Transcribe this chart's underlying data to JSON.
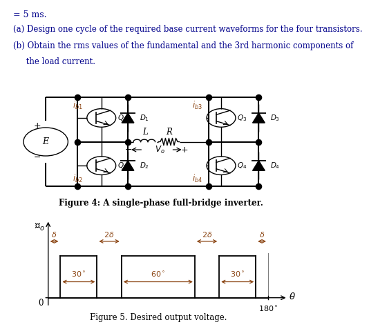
{
  "title_text": "= 5 ms.",
  "part_a": "(a) Design one cycle of the required base current waveforms for the four transistors.",
  "part_b_line1": "(b) Obtain the rms values of the fundamental and the 3rd harmonic components of",
  "part_b_line2": "     the load current.",
  "fig4_caption_bold": "Figure 4:",
  "fig4_caption_rest": " A single-phase full-bridge inverter.",
  "fig5_caption": "Figure 5. Desired output voltage.",
  "bg_color": "#ffffff",
  "text_color": "#000000",
  "blue_color": "#00008B",
  "annotation_color": "#8B4513",
  "waveform_color": "#000000",
  "delta_deg": 10,
  "pulse1_deg": 30,
  "middle_pulse_deg": 60,
  "pulse3_deg": 30,
  "two_delta_deg": 20,
  "total_deg": 180
}
